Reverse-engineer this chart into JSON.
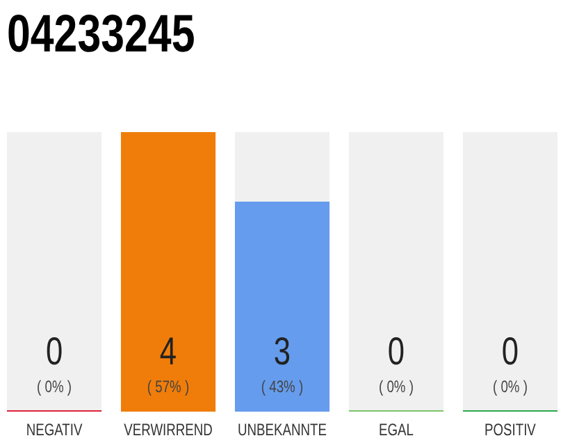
{
  "chart_data": {
    "type": "bar",
    "title": "04233245",
    "categories": [
      "NEGATIV",
      "VERWIRREND",
      "UNBEKANNTE",
      "EGAL",
      "POSITIV"
    ],
    "values": [
      0,
      4,
      3,
      0,
      0
    ],
    "colors": [
      "#e0203a",
      "#f07d0a",
      "#659ced",
      "#7cc46a",
      "#2aa84a"
    ],
    "value_labels": [
      "0\n( 0% )",
      "4\n( 57% )",
      "3\n( 43% )",
      "0\n( 0% )",
      "0\n( 0% )"
    ]
  }
}
